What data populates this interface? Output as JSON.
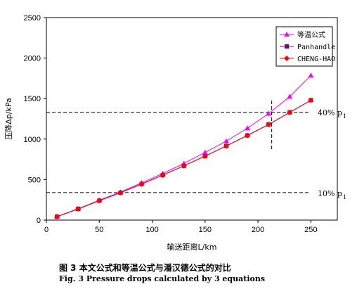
{
  "chart_data": {
    "type": "line",
    "xlabel": "输送距离L/km",
    "ylabel": "压降Δp/kPa",
    "xlim": [
      0,
      275
    ],
    "ylim": [
      0,
      2500
    ],
    "x_ticks": [
      "0",
      "50",
      "100",
      "150",
      "200",
      "250"
    ],
    "y_ticks": [
      "0",
      "500",
      "1000",
      "1500",
      "2000",
      "2500"
    ],
    "grid": false,
    "legend_position": "top-right",
    "x": [
      10,
      30,
      50,
      70,
      90,
      110,
      130,
      150,
      170,
      190,
      210,
      230,
      250
    ],
    "series": [
      {
        "name": "等温公式",
        "marker": "triangle",
        "color": "#ff00ff",
        "values": [
          45,
          140,
          245,
          345,
          460,
          575,
          700,
          835,
          975,
          1135,
          1315,
          1525,
          1785
        ]
      },
      {
        "name": "Panhandle",
        "marker": "square",
        "color": "#800080",
        "values": [
          42,
          138,
          240,
          338,
          445,
          555,
          670,
          790,
          915,
          1045,
          1180,
          1330,
          1480
        ]
      },
      {
        "name": "CHENG-HAO",
        "marker": "diamond",
        "color": "#ff0000",
        "values": [
          42,
          138,
          240,
          338,
          445,
          555,
          670,
          790,
          915,
          1045,
          1180,
          1330,
          1480
        ]
      }
    ],
    "annotations": {
      "upper_label": "40% p",
      "upper_sub": "1",
      "upper_y": 1330,
      "lower_label": "10% p",
      "lower_sub": "1",
      "lower_y": 340,
      "vertical_x": 213
    }
  },
  "caption": {
    "zh": "图 3  本文公式和等温公式与潘汉德公式的对比",
    "en": "Fig. 3  Pressure drops calculated by 3 equations"
  }
}
